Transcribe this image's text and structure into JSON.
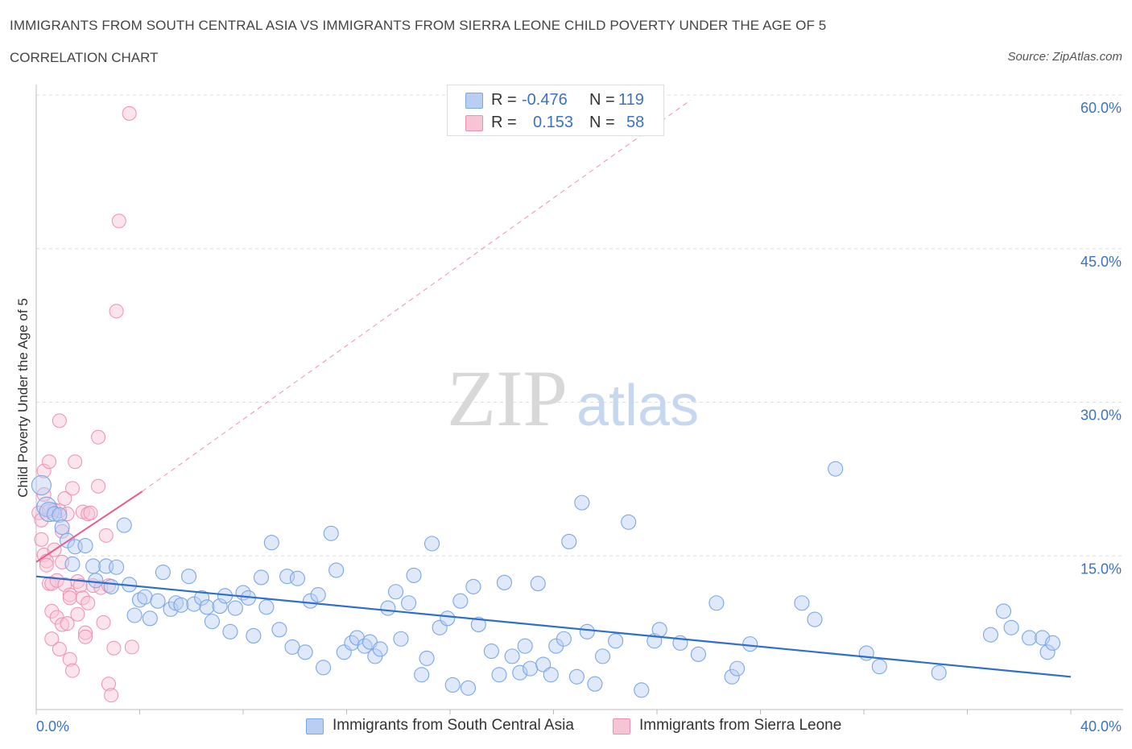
{
  "header": {
    "title": "IMMIGRANTS FROM SOUTH CENTRAL ASIA VS IMMIGRANTS FROM SIERRA LEONE CHILD POVERTY UNDER THE AGE OF 5",
    "subtitle": "CORRELATION CHART",
    "source": "Source: ZipAtlas.com"
  },
  "legend": {
    "rows": [
      {
        "r_label": "R =",
        "r_value": "-0.476",
        "n_label": "N =",
        "n_value": "119"
      },
      {
        "r_label": "R =",
        "r_value": "0.153",
        "n_label": "N =",
        "n_value": "58"
      }
    ]
  },
  "bottom_legend": {
    "blue_label": "Immigrants from South Central Asia",
    "pink_label": "Immigrants from Sierra Leone"
  },
  "watermark": {
    "zip": "ZIP",
    "atlas": "atlas"
  },
  "colors": {
    "blue": "#7aa7e8",
    "blue_fill": "#b8cff3",
    "blue_line": "#2e6fcc",
    "pink": "#ef8fb0",
    "pink_fill": "#f7c4d5",
    "pink_line": "#e85d8d",
    "grid": "#dddddd",
    "axis_text": "#3a72c8"
  },
  "chart_data": {
    "type": "scatter",
    "title": "IMMIGRANTS FROM SOUTH CENTRAL ASIA VS IMMIGRANTS FROM SIERRA LEONE CHILD POVERTY UNDER THE AGE OF 5",
    "xlabel": "",
    "ylabel": "Child Poverty Under the Age of 5",
    "xlim": [
      0,
      40
    ],
    "ylim": [
      0,
      60
    ],
    "x_tick_labels": [
      "0.0%",
      "40.0%"
    ],
    "y_ticks": [
      15,
      30,
      45,
      60
    ],
    "y_tick_labels": [
      "15.0%",
      "30.0%",
      "45.0%",
      "60.0%"
    ],
    "grid": true,
    "legend_position": "top-center",
    "series": [
      {
        "name": "Immigrants from South Central Asia",
        "R": -0.476,
        "N": 119,
        "trend": {
          "x": [
            0,
            40
          ],
          "y": [
            13.0,
            3.2
          ],
          "style": "solid"
        },
        "points": [
          [
            0.2,
            21.9
          ],
          [
            0.4,
            19.8
          ],
          [
            0.5,
            19.3
          ],
          [
            0.7,
            19.1
          ],
          [
            0.9,
            19.0
          ],
          [
            1.0,
            17.8
          ],
          [
            1.2,
            16.5
          ],
          [
            1.4,
            14.2
          ],
          [
            1.5,
            15.9
          ],
          [
            1.9,
            16.0
          ],
          [
            2.2,
            14.0
          ],
          [
            2.3,
            12.6
          ],
          [
            2.7,
            14.0
          ],
          [
            3.1,
            13.9
          ],
          [
            2.9,
            12.0
          ],
          [
            3.4,
            18.0
          ],
          [
            3.6,
            12.2
          ],
          [
            3.8,
            9.2
          ],
          [
            4.0,
            10.7
          ],
          [
            4.2,
            11.0
          ],
          [
            4.4,
            8.9
          ],
          [
            4.7,
            10.6
          ],
          [
            4.9,
            13.4
          ],
          [
            5.2,
            9.8
          ],
          [
            5.4,
            10.4
          ],
          [
            5.6,
            10.2
          ],
          [
            5.9,
            13.0
          ],
          [
            6.1,
            10.3
          ],
          [
            6.4,
            10.9
          ],
          [
            6.6,
            10.0
          ],
          [
            6.8,
            8.6
          ],
          [
            7.1,
            10.1
          ],
          [
            7.3,
            11.1
          ],
          [
            7.5,
            7.6
          ],
          [
            7.7,
            9.9
          ],
          [
            8.0,
            11.4
          ],
          [
            8.2,
            10.9
          ],
          [
            8.4,
            7.2
          ],
          [
            8.7,
            12.9
          ],
          [
            8.9,
            10.0
          ],
          [
            9.1,
            16.3
          ],
          [
            9.4,
            7.8
          ],
          [
            9.7,
            13.0
          ],
          [
            9.9,
            6.1
          ],
          [
            10.1,
            12.8
          ],
          [
            10.4,
            5.6
          ],
          [
            10.6,
            10.6
          ],
          [
            10.9,
            11.2
          ],
          [
            11.1,
            4.1
          ],
          [
            11.4,
            17.2
          ],
          [
            11.6,
            13.6
          ],
          [
            11.9,
            5.6
          ],
          [
            12.2,
            6.5
          ],
          [
            12.4,
            7.0
          ],
          [
            12.7,
            6.2
          ],
          [
            12.9,
            6.6
          ],
          [
            13.1,
            5.2
          ],
          [
            13.3,
            5.9
          ],
          [
            13.6,
            9.9
          ],
          [
            13.9,
            11.5
          ],
          [
            14.1,
            6.9
          ],
          [
            14.4,
            10.4
          ],
          [
            14.6,
            13.1
          ],
          [
            14.9,
            3.4
          ],
          [
            15.1,
            5.0
          ],
          [
            15.3,
            16.2
          ],
          [
            15.6,
            8.0
          ],
          [
            15.9,
            8.9
          ],
          [
            16.1,
            2.4
          ],
          [
            16.4,
            10.6
          ],
          [
            16.7,
            2.1
          ],
          [
            16.9,
            12.0
          ],
          [
            17.1,
            8.3
          ],
          [
            17.6,
            5.7
          ],
          [
            17.9,
            3.4
          ],
          [
            18.1,
            12.4
          ],
          [
            18.4,
            5.2
          ],
          [
            18.7,
            3.6
          ],
          [
            18.9,
            6.2
          ],
          [
            19.1,
            4.0
          ],
          [
            19.4,
            12.3
          ],
          [
            19.6,
            4.4
          ],
          [
            19.9,
            3.4
          ],
          [
            20.1,
            6.2
          ],
          [
            20.4,
            6.9
          ],
          [
            20.6,
            16.4
          ],
          [
            20.9,
            3.2
          ],
          [
            21.1,
            20.2
          ],
          [
            21.3,
            7.6
          ],
          [
            21.6,
            2.5
          ],
          [
            21.9,
            5.2
          ],
          [
            22.4,
            6.7
          ],
          [
            22.9,
            18.3
          ],
          [
            23.4,
            1.9
          ],
          [
            23.9,
            6.7
          ],
          [
            24.1,
            7.8
          ],
          [
            24.9,
            6.5
          ],
          [
            25.6,
            5.4
          ],
          [
            26.3,
            10.4
          ],
          [
            26.9,
            3.2
          ],
          [
            27.1,
            4.0
          ],
          [
            27.6,
            6.4
          ],
          [
            29.6,
            10.4
          ],
          [
            30.1,
            8.8
          ],
          [
            30.9,
            23.5
          ],
          [
            32.1,
            5.5
          ],
          [
            32.6,
            4.2
          ],
          [
            34.9,
            3.6
          ],
          [
            36.9,
            7.3
          ],
          [
            37.4,
            9.6
          ],
          [
            37.7,
            8.0
          ],
          [
            38.4,
            7.0
          ],
          [
            38.9,
            7.0
          ],
          [
            39.1,
            5.6
          ],
          [
            39.3,
            6.5
          ]
        ]
      },
      {
        "name": "Immigrants from Sierra Leone",
        "R": 0.153,
        "N": 58,
        "trend": {
          "x": [
            0,
            4.1
          ],
          "y": [
            14.4,
            21.3
          ],
          "style": "solid",
          "extension": {
            "x": [
              4.1,
              25.3
            ],
            "y": [
              21.3,
              59.5
            ],
            "style": "dashed"
          }
        },
        "points": [
          [
            0.1,
            19.2
          ],
          [
            0.2,
            18.5
          ],
          [
            0.2,
            16.6
          ],
          [
            0.3,
            15.1
          ],
          [
            0.3,
            23.3
          ],
          [
            0.3,
            21.0
          ],
          [
            0.4,
            14.5
          ],
          [
            0.4,
            14.1
          ],
          [
            0.5,
            19.4
          ],
          [
            0.5,
            24.2
          ],
          [
            0.5,
            12.3
          ],
          [
            0.6,
            12.3
          ],
          [
            0.6,
            9.6
          ],
          [
            0.6,
            6.9
          ],
          [
            0.7,
            19.5
          ],
          [
            0.7,
            15.6
          ],
          [
            0.8,
            12.6
          ],
          [
            0.8,
            9.0
          ],
          [
            0.9,
            5.9
          ],
          [
            0.9,
            19.4
          ],
          [
            0.9,
            28.2
          ],
          [
            1.0,
            17.4
          ],
          [
            1.0,
            14.4
          ],
          [
            1.0,
            8.3
          ],
          [
            1.1,
            20.6
          ],
          [
            1.1,
            12.2
          ],
          [
            1.2,
            8.4
          ],
          [
            1.2,
            19.1
          ],
          [
            1.3,
            11.2
          ],
          [
            1.3,
            10.9
          ],
          [
            1.3,
            4.9
          ],
          [
            1.4,
            21.6
          ],
          [
            1.4,
            3.8
          ],
          [
            1.5,
            24.2
          ],
          [
            1.6,
            12.5
          ],
          [
            1.6,
            9.3
          ],
          [
            1.7,
            12.1
          ],
          [
            1.8,
            10.9
          ],
          [
            1.8,
            19.3
          ],
          [
            1.9,
            7.5
          ],
          [
            1.9,
            7.1
          ],
          [
            2.0,
            19.1
          ],
          [
            2.0,
            10.4
          ],
          [
            2.1,
            19.2
          ],
          [
            2.2,
            12.1
          ],
          [
            2.4,
            26.6
          ],
          [
            2.4,
            21.8
          ],
          [
            2.5,
            11.9
          ],
          [
            2.6,
            8.5
          ],
          [
            2.7,
            17.0
          ],
          [
            2.8,
            2.5
          ],
          [
            2.8,
            12.1
          ],
          [
            2.9,
            1.4
          ],
          [
            3.0,
            6.0
          ],
          [
            3.1,
            38.9
          ],
          [
            3.2,
            47.7
          ],
          [
            3.6,
            58.2
          ],
          [
            3.7,
            6.1
          ]
        ]
      }
    ]
  }
}
